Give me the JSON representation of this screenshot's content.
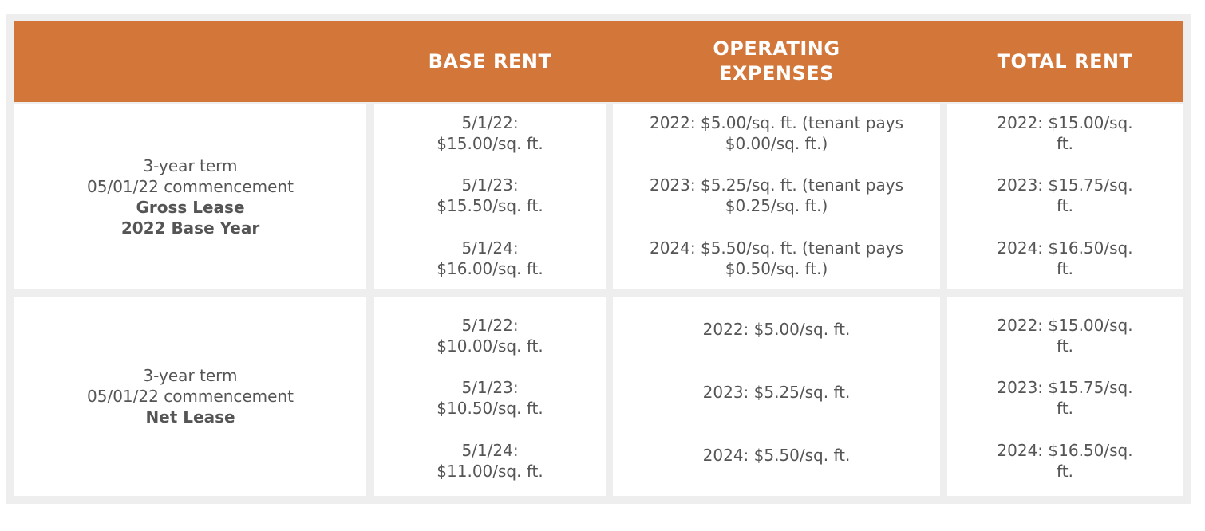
{
  "header": {
    "col0": "",
    "base_rent": "BASE RENT",
    "operating_expenses": "OPERATING\nEXPENSES",
    "total_rent": "TOTAL RENT"
  },
  "rows": [
    {
      "description": {
        "line1": "3-year term",
        "line2": "05/01/22 commencement",
        "line3": "Gross Lease",
        "line4": "2022 Base Year"
      },
      "base_rent": [
        {
          "date": "5/1/22:",
          "amount": "$15.00/sq. ft."
        },
        {
          "date": "5/1/23:",
          "amount": "$15.50/sq. ft."
        },
        {
          "date": "5/1/24:",
          "amount": "$16.00/sq. ft."
        }
      ],
      "operating_expenses": [
        {
          "line1": "2022: $5.00/sq. ft. (tenant pays",
          "line2": "$0.00/sq. ft.)"
        },
        {
          "line1": "2023: $5.25/sq. ft. (tenant pays",
          "line2": "$0.25/sq. ft.)"
        },
        {
          "line1": "2024: $5.50/sq. ft. (tenant pays",
          "line2": "$0.50/sq. ft.)"
        }
      ],
      "total_rent": [
        {
          "line1": "2022: $15.00/sq.",
          "line2": "ft."
        },
        {
          "line1": "2023: $15.75/sq.",
          "line2": "ft."
        },
        {
          "line1": "2024: $16.50/sq.",
          "line2": "ft."
        }
      ]
    },
    {
      "description": {
        "line1": "3-year term",
        "line2": "05/01/22 commencement",
        "line3": "Net Lease"
      },
      "base_rent": [
        {
          "date": "5/1/22:",
          "amount": "$10.00/sq. ft."
        },
        {
          "date": "5/1/23:",
          "amount": "$10.50/sq. ft."
        },
        {
          "date": "5/1/24:",
          "amount": "$11.00/sq. ft."
        }
      ],
      "operating_expenses": [
        {
          "line1": "2022: $5.00/sq. ft."
        },
        {
          "line1": "2023: $5.25/sq. ft."
        },
        {
          "line1": "2024: $5.50/sq. ft."
        }
      ],
      "total_rent": [
        {
          "line1": "2022: $15.00/sq.",
          "line2": "ft."
        },
        {
          "line1": "2023: $15.75/sq.",
          "line2": "ft."
        },
        {
          "line1": "2024: $16.50/sq.",
          "line2": "ft."
        }
      ]
    }
  ],
  "colors": {
    "header_bg": "#d2763a",
    "header_text": "#ffffff",
    "frame_bg": "#eeeeee",
    "body_text": "#555555"
  }
}
